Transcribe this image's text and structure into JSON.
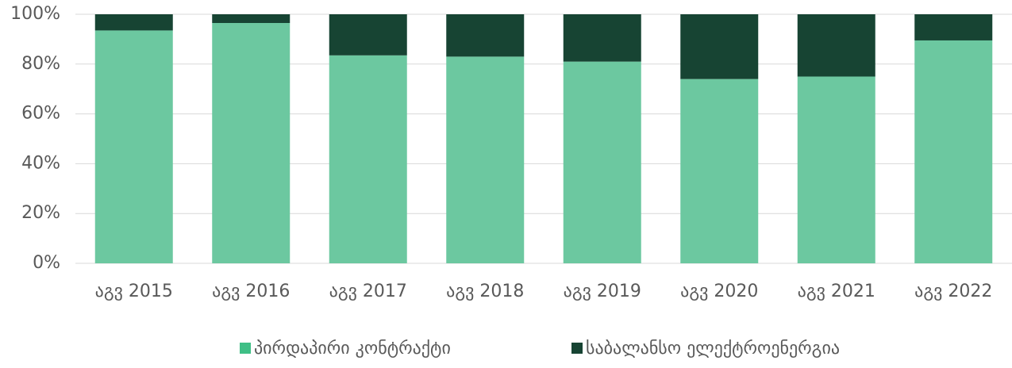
{
  "chart_data": {
    "type": "stacked_bar",
    "categories": [
      "აგვ 2015",
      "აგვ 2016",
      "აგვ 2017",
      "აგვ 2018",
      "აგვ 2019",
      "აგვ 2020",
      "აგვ 2021",
      "აგვ 2022"
    ],
    "series": [
      {
        "name": "პირდაპირი კონტრაქტი",
        "color": "#6cc8a0",
        "values": [
          93.5,
          96.5,
          83.5,
          83,
          81,
          74,
          75,
          89.5
        ]
      },
      {
        "name": "საბალანსო ელექტროენერგია",
        "color": "#174433",
        "values": [
          6.5,
          3.5,
          16.5,
          17,
          19,
          26,
          25,
          10.5
        ]
      }
    ],
    "ylim": [
      0,
      100
    ],
    "yticks": [
      {
        "value": 0,
        "label": "0%"
      },
      {
        "value": 20,
        "label": "20%"
      },
      {
        "value": 40,
        "label": "40%"
      },
      {
        "value": 60,
        "label": "60%"
      },
      {
        "value": 80,
        "label": "80%"
      },
      {
        "value": 100,
        "label": "100%"
      }
    ],
    "grid": true,
    "legend": "bottom"
  }
}
